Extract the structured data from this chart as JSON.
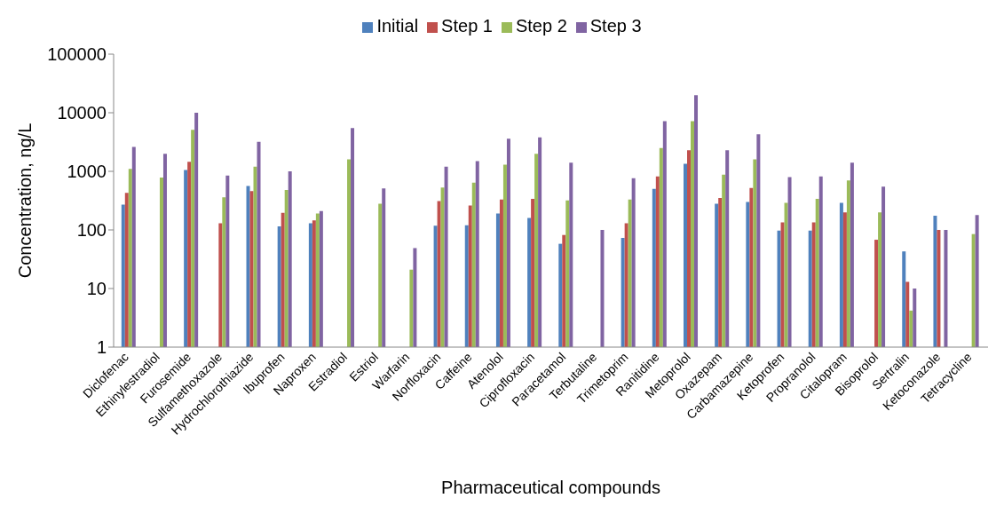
{
  "chart_data": {
    "type": "bar",
    "xlabel": "Pharmaceutical compounds",
    "ylabel": "Concentration, ng/L",
    "categories": [
      "Diclofenac",
      "Ethinylestradiol",
      "Furosemide",
      "Sulfamethoxazole",
      "Hydrochlorothiazide",
      "Ibuprofen",
      "Naproxen",
      "Estradiol",
      "Estriol",
      "Warfarin",
      "Norfloxacin",
      "Caffeine",
      "Atenolol",
      "Ciprofloxacin",
      "Paracetamol",
      "Terbutaline",
      "Trimetoprim",
      "Ranitidine",
      "Metoprolol",
      "Oxazepam",
      "Carbamazepine",
      "Ketoprofen",
      "Propranolol",
      "Citalopram",
      "Bisoprolol",
      "Sertralin",
      "Ketoconazole",
      "Tetracycline"
    ],
    "series": [
      {
        "name": "Initial",
        "color": "#4f81bd",
        "values": [
          270,
          null,
          1050,
          null,
          560,
          115,
          130,
          null,
          null,
          null,
          118,
          120,
          190,
          160,
          58,
          null,
          73,
          500,
          1350,
          280,
          300,
          97,
          97,
          290,
          null,
          43,
          175,
          null
        ]
      },
      {
        "name": "Step 1",
        "color": "#c0504d",
        "values": [
          430,
          null,
          1450,
          130,
          460,
          195,
          145,
          null,
          null,
          null,
          310,
          260,
          330,
          340,
          82,
          null,
          130,
          820,
          2300,
          350,
          520,
          135,
          135,
          200,
          68,
          13,
          100,
          null
        ]
      },
      {
        "name": "Step 2",
        "color": "#9bbb59",
        "values": [
          1100,
          780,
          5100,
          360,
          1200,
          480,
          190,
          1600,
          280,
          21,
          530,
          640,
          1300,
          2000,
          320,
          null,
          330,
          2500,
          7200,
          880,
          1600,
          290,
          340,
          700,
          200,
          4.2,
          null,
          85
        ]
      },
      {
        "name": "Step 3",
        "color": "#8064a2",
        "values": [
          2600,
          2000,
          10000,
          850,
          3200,
          1000,
          210,
          5500,
          510,
          49,
          1200,
          1500,
          3600,
          3800,
          1400,
          100,
          760,
          7200,
          20000,
          2300,
          4300,
          800,
          820,
          1400,
          550,
          10,
          100,
          180
        ]
      }
    ],
    "log": "y",
    "ylim": [
      1,
      100000
    ],
    "yticks": [
      1,
      10,
      100,
      1000,
      10000,
      100000
    ],
    "grid": false,
    "legend": "top"
  }
}
